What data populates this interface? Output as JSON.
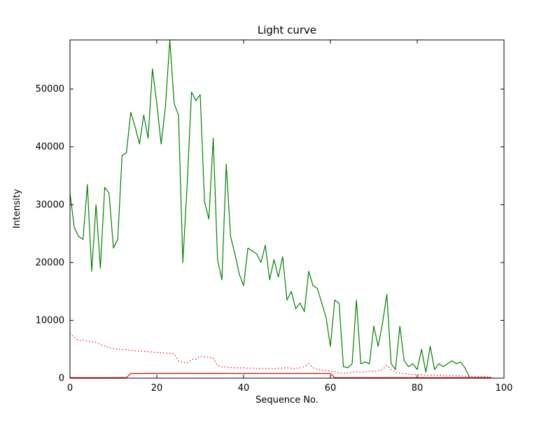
{
  "figure": {
    "background": "#ffffff",
    "frame_color": "#000000"
  },
  "chart_data": {
    "type": "line",
    "title": "Light curve",
    "xlabel": "Sequence No.",
    "ylabel": "Intensity",
    "xlim": [
      0,
      100
    ],
    "ylim": [
      0,
      58500
    ],
    "xticks": [
      0,
      20,
      40,
      60,
      80,
      100
    ],
    "yticks": [
      0,
      10000,
      20000,
      30000,
      40000,
      50000
    ],
    "grid": false,
    "legend": null,
    "series": [
      {
        "name": "green-solid-main-curve",
        "color": "#008000",
        "style": "solid",
        "x0": 0,
        "values": [
          32000,
          26000,
          24500,
          24000,
          33500,
          18500,
          30000,
          19000,
          33000,
          32000,
          22500,
          24000,
          38500,
          39000,
          46000,
          43500,
          40500,
          45500,
          41500,
          53500,
          47500,
          40500,
          47000,
          58500,
          47500,
          45500,
          20000,
          33500,
          49500,
          48000,
          49000,
          30500,
          27500,
          41500,
          20500,
          17000,
          37000,
          24500,
          21500,
          18000,
          16000,
          22500,
          22000,
          21500,
          20000,
          23000,
          17000,
          20500,
          17500,
          21000,
          13500,
          15000,
          12000,
          13000,
          11500,
          18500,
          16000,
          15500,
          13000,
          10500,
          5500,
          13500,
          13000,
          2000,
          1800,
          2500,
          13500,
          2500,
          2800,
          2500,
          9000,
          5500,
          9500,
          14500,
          2500,
          1500,
          9000,
          3000,
          2000,
          2500,
          1500,
          5000,
          1000,
          5500,
          1500,
          2500,
          2000,
          2500,
          3000,
          2500,
          2800,
          1800,
          200
        ]
      },
      {
        "name": "red-dotted-curve",
        "color": "#ff0000",
        "style": "dotted",
        "x0": 0,
        "values": [
          7800,
          7000,
          6500,
          6600,
          6400,
          6300,
          6200,
          5800,
          5600,
          5300,
          5100,
          5000,
          4900,
          4950,
          4800,
          4750,
          4700,
          4650,
          4600,
          4500,
          4450,
          4400,
          4350,
          4300,
          4200,
          3000,
          2800,
          2600,
          3200,
          3300,
          3800,
          3700,
          3600,
          3500,
          2200,
          2000,
          1900,
          1850,
          1800,
          1750,
          1800,
          1700,
          1750,
          1700,
          1650,
          1700,
          1650,
          1600,
          1700,
          1750,
          1800,
          1700,
          1650,
          1800,
          2000,
          2500,
          1800,
          1500,
          1400,
          1300,
          1200,
          1100,
          900,
          800,
          900,
          1000,
          1100,
          1000,
          1100,
          1200,
          1200,
          1300,
          1500,
          2200,
          1500,
          1000,
          900,
          800,
          700,
          650,
          600,
          600,
          550,
          500,
          550,
          500,
          450,
          400,
          450,
          400,
          400,
          350,
          300,
          300,
          250,
          300,
          250,
          200
        ]
      },
      {
        "name": "red-solid-step-curve",
        "color": "#ff0000",
        "style": "solid",
        "x": [
          0,
          13,
          14,
          60,
          61,
          97
        ],
        "values": [
          100,
          100,
          800,
          800,
          100,
          100
        ]
      }
    ]
  }
}
